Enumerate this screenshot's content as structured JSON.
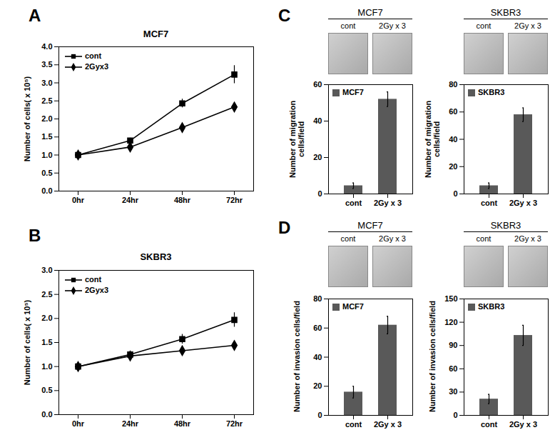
{
  "chart_data": [
    {
      "type": "line",
      "panel": "A",
      "title": "MCF7",
      "categories": [
        "0hr",
        "24hr",
        "48hr",
        "72hr"
      ],
      "y_label": "Number of cells( x 10⁵)",
      "ylim": [
        0,
        4
      ],
      "yticks": [
        {
          "value": 0,
          "label": "0.0"
        },
        {
          "value": 0.5,
          "label": "0.5"
        },
        {
          "value": 1,
          "label": "1.0"
        },
        {
          "value": 1.5,
          "label": "1.5"
        },
        {
          "value": 2,
          "label": "2.0"
        },
        {
          "value": 2.5,
          "label": "2.5"
        },
        {
          "value": 3,
          "label": "3.0"
        },
        {
          "value": 3.5,
          "label": "3.5"
        },
        {
          "value": 4,
          "label": "4.0"
        }
      ],
      "legend": "top-left",
      "series": [
        {
          "name": "cont",
          "color": "#000000",
          "marker": "square",
          "values": [
            1.0,
            1.4,
            2.43,
            3.23
          ],
          "errors": [
            0.03,
            0.07,
            0.12,
            0.25
          ]
        },
        {
          "name": "2Gyx3",
          "color": "#000000",
          "marker": "diamond",
          "values": [
            1.0,
            1.22,
            1.76,
            2.33
          ],
          "errors": [
            0.02,
            0.04,
            0.06,
            0.05
          ]
        }
      ]
    },
    {
      "type": "line",
      "panel": "B",
      "title": "SKBR3",
      "categories": [
        "0hr",
        "24hr",
        "48hr",
        "72hr"
      ],
      "y_label": "Number of cells( x 10⁵)",
      "ylim": [
        0,
        3
      ],
      "yticks": [
        {
          "value": 0,
          "label": "0.0"
        },
        {
          "value": 0.5,
          "label": "0.5"
        },
        {
          "value": 1,
          "label": "1.0"
        },
        {
          "value": 1.5,
          "label": "1.5"
        },
        {
          "value": 2,
          "label": "2.0"
        },
        {
          "value": 2.5,
          "label": "2.5"
        },
        {
          "value": 3,
          "label": "3.0"
        }
      ],
      "legend": "top-left",
      "series": [
        {
          "name": "cont",
          "color": "#000000",
          "marker": "square",
          "values": [
            1.0,
            1.25,
            1.57,
            1.97
          ],
          "errors": [
            0.02,
            0.07,
            0.1,
            0.15
          ]
        },
        {
          "name": "2Gyx3",
          "color": "#000000",
          "marker": "diamond",
          "values": [
            1.0,
            1.22,
            1.33,
            1.44
          ],
          "errors": [
            0.02,
            0.06,
            0.05,
            0.05
          ]
        }
      ]
    },
    {
      "type": "bar",
      "panel": "C",
      "title": "MCF7",
      "categories": [
        "cont",
        "2Gy x 3"
      ],
      "y_label": "Number of migration cells/field",
      "ylim": [
        0,
        60
      ],
      "yticks": [
        0,
        20,
        40,
        60
      ],
      "legend": "top-left",
      "series": [
        {
          "name": "MCF7",
          "color": "#595959",
          "values": [
            4.5,
            52
          ],
          "errors": [
            1.5,
            4
          ]
        }
      ]
    },
    {
      "type": "bar",
      "title": "SKBR3",
      "categories": [
        "cont",
        "2Gy x 3"
      ],
      "y_label": "Number of migration cells/field",
      "ylim": [
        0,
        80
      ],
      "yticks": [
        0,
        20,
        40,
        60,
        80
      ],
      "legend": "top-left",
      "series": [
        {
          "name": "SKBR3",
          "color": "#595959",
          "values": [
            6,
            58
          ],
          "errors": [
            2,
            5
          ]
        }
      ]
    },
    {
      "type": "bar",
      "panel": "D",
      "title": "MCF7",
      "categories": [
        "cont",
        "2Gy x 3"
      ],
      "y_label": "Number of invasion cells/field",
      "ylim": [
        0,
        80
      ],
      "yticks": [
        0,
        20,
        40,
        60,
        80
      ],
      "legend": "top-left",
      "series": [
        {
          "name": "MCF7",
          "color": "#595959",
          "values": [
            16,
            62
          ],
          "errors": [
            4,
            6
          ]
        }
      ]
    },
    {
      "type": "bar",
      "title": "SKBR3",
      "categories": [
        "cont",
        "2Gy x 3"
      ],
      "y_label": "Number of invasion cells/field",
      "ylim": [
        0,
        150
      ],
      "yticks": [
        0,
        30,
        60,
        90,
        120,
        150
      ],
      "legend": "top-left",
      "series": [
        {
          "name": "SKBR3",
          "color": "#595959",
          "values": [
            21,
            103
          ],
          "errors": [
            6,
            13
          ]
        }
      ]
    }
  ]
}
